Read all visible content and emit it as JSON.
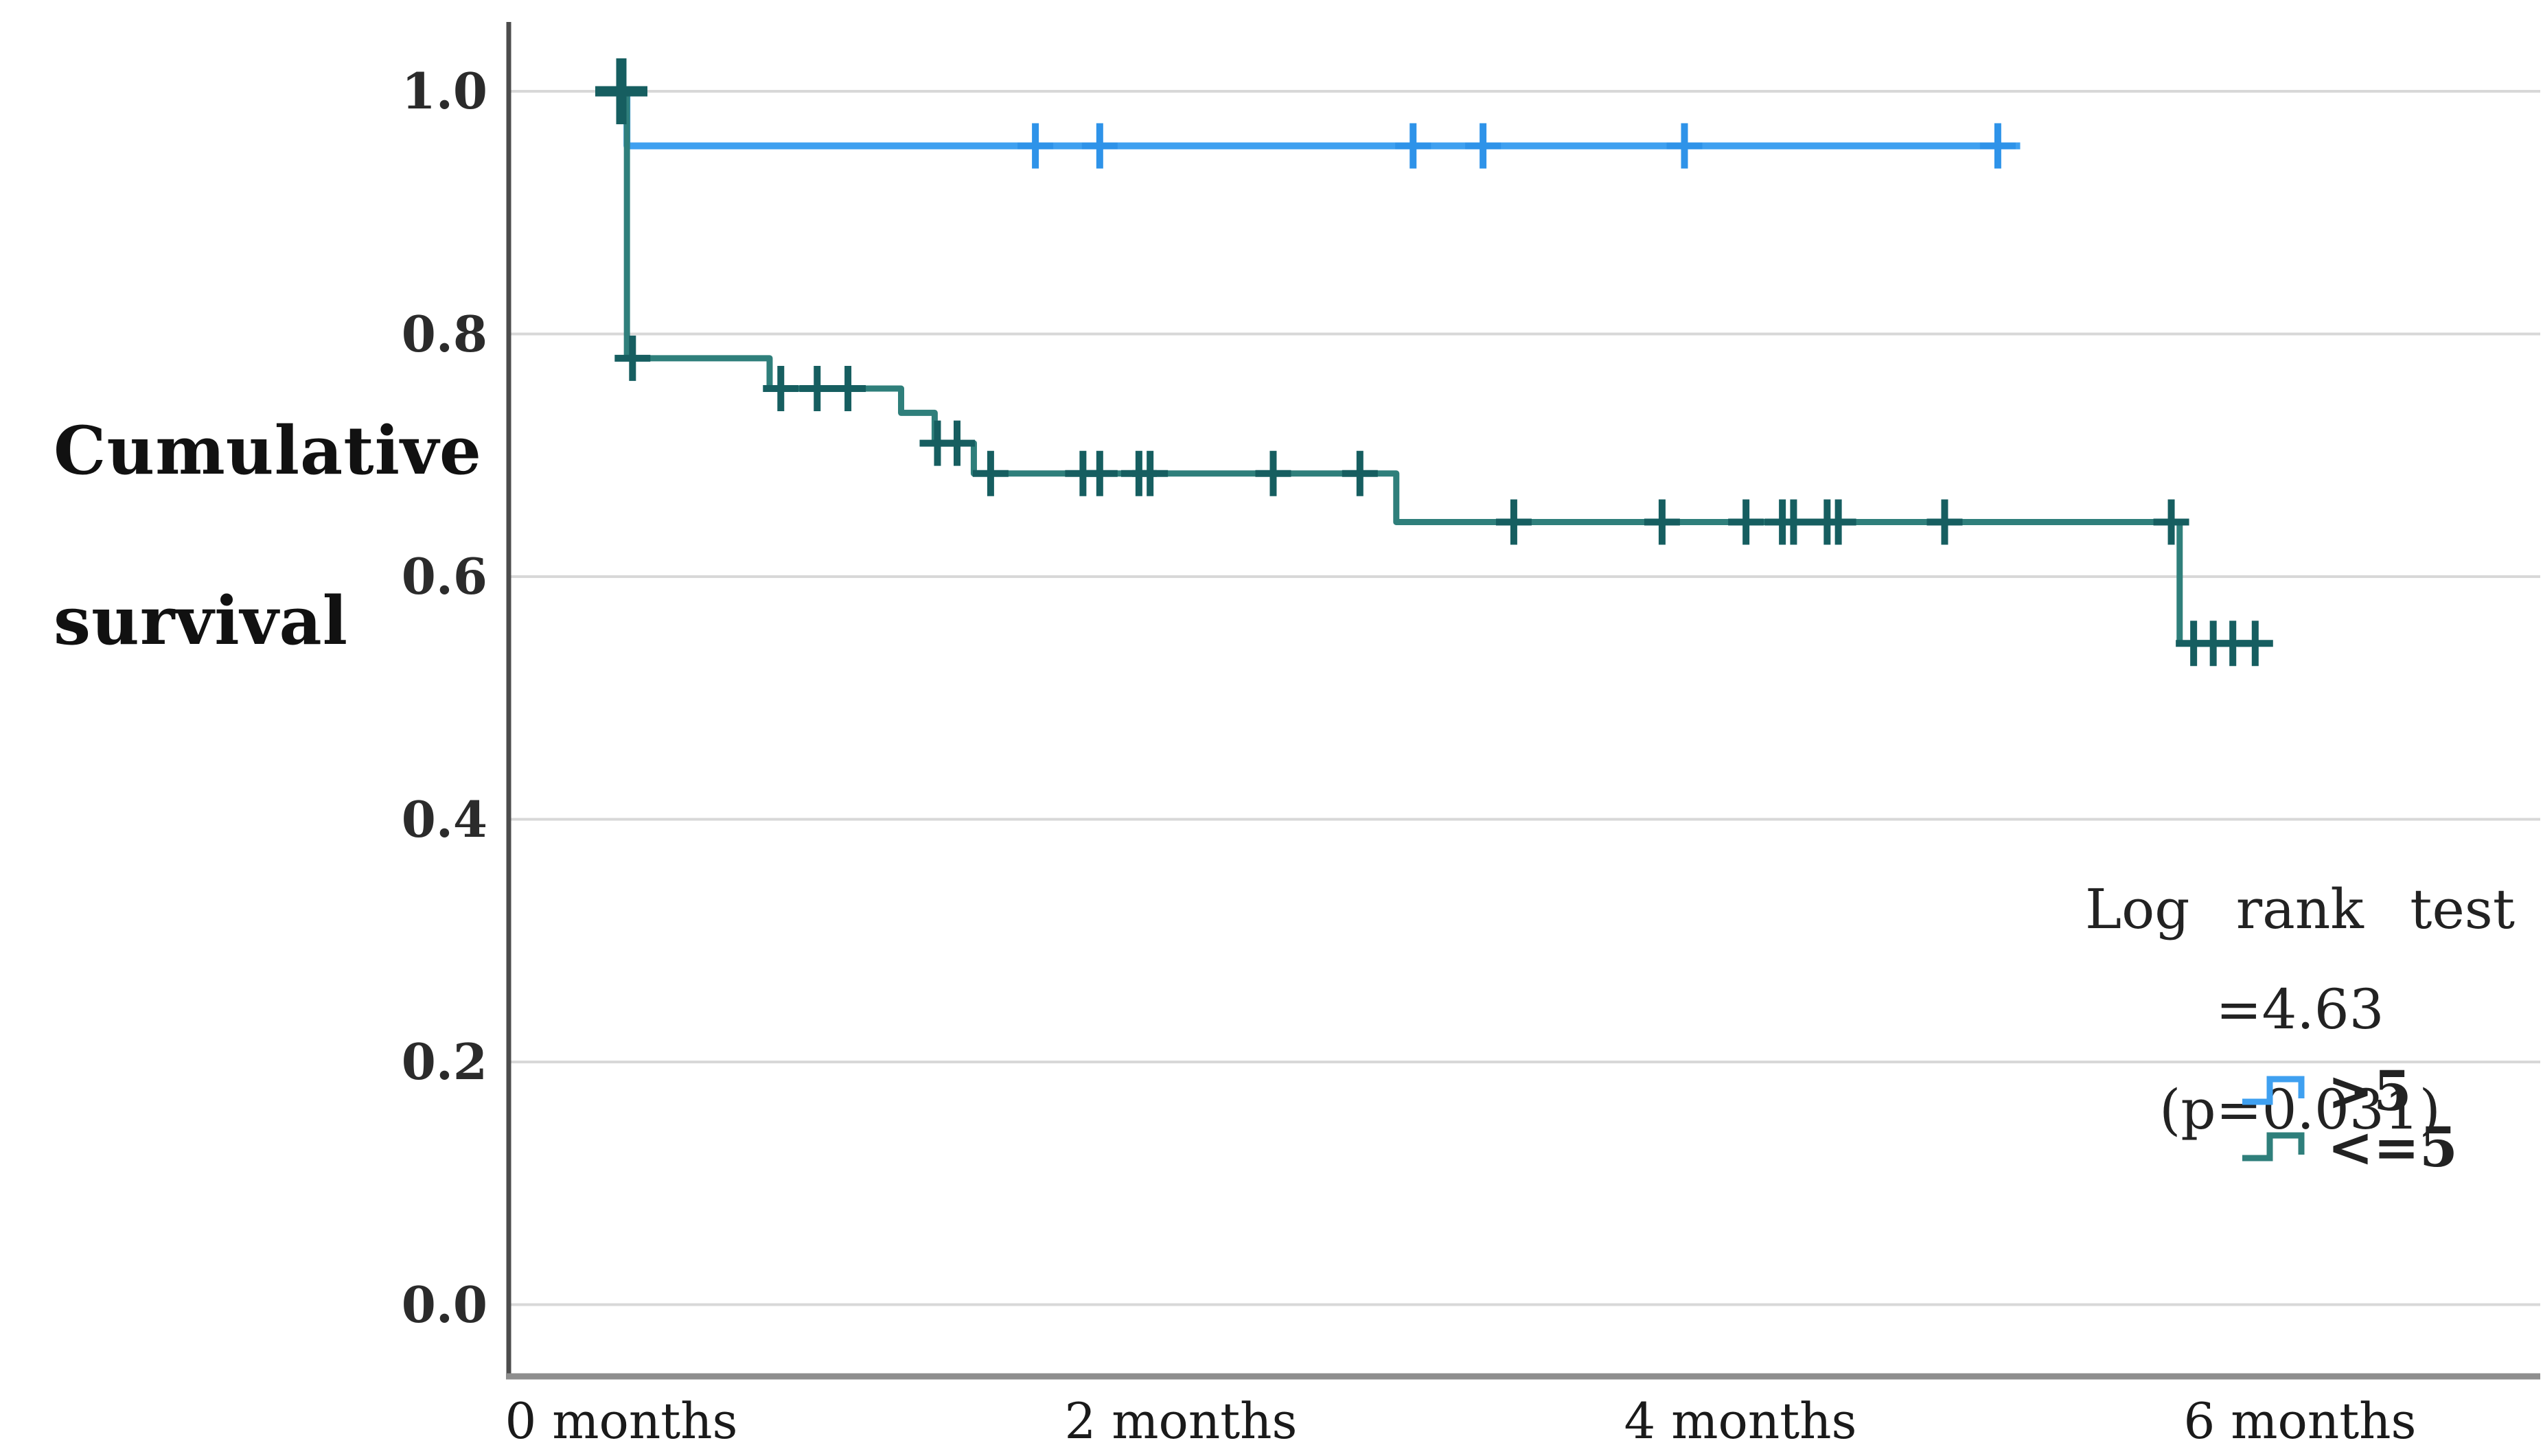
{
  "figure": {
    "ylabel_line1": "Cumulative",
    "ylabel_line2": "survival",
    "annotation_line1": "Log rank test",
    "annotation_line2": "=4.63 (p=0.031)"
  },
  "chart_data": {
    "type": "line",
    "subtype": "kaplan-meier-step-curves",
    "title": "",
    "xlabel": "",
    "ylabel": "Cumulative survival",
    "x_unit": "months",
    "xlim": [
      -0.4,
      6.85
    ],
    "ylim": [
      -0.055,
      1.06
    ],
    "grid": true,
    "gridline_values": [
      1.0,
      0.8,
      0.6,
      0.4,
      0.2,
      0.0
    ],
    "x_ticks": [
      {
        "value": 0,
        "label": "0 months"
      },
      {
        "value": 2,
        "label": "2 months"
      },
      {
        "value": 4,
        "label": "4 months"
      },
      {
        "value": 6,
        "label": "6 months"
      }
    ],
    "y_ticks": [
      {
        "value": 1.0,
        "label": "1.0"
      },
      {
        "value": 0.8,
        "label": "0.8"
      },
      {
        "value": 0.6,
        "label": "0.6"
      },
      {
        "value": 0.4,
        "label": "0.4"
      },
      {
        "value": 0.2,
        "label": "0.2"
      },
      {
        "value": 0.0,
        "label": "0.0"
      }
    ],
    "annotation": {
      "lines": [
        "Log rank test",
        "=4.63 (p=0.031)"
      ],
      "position": "right-middle"
    },
    "legend_position": "bottom-right",
    "series": [
      {
        "name": ">5",
        "color": "#3FA0F0",
        "censor_color": "#2E93E9",
        "steps": [
          [
            0,
            1.0
          ],
          [
            0.02,
            0.955
          ],
          [
            5.0,
            0.955
          ]
        ],
        "censors": [
          [
            1.48,
            0.955
          ],
          [
            1.71,
            0.955
          ],
          [
            2.83,
            0.955
          ],
          [
            3.08,
            0.955
          ],
          [
            3.8,
            0.955
          ],
          [
            4.92,
            0.955
          ]
        ]
      },
      {
        "name": "<=5",
        "color": "#2F7F7B",
        "censor_color": "#165E60",
        "steps": [
          [
            0,
            1.0
          ],
          [
            0.02,
            0.78
          ],
          [
            0.53,
            0.755
          ],
          [
            1.0,
            0.735
          ],
          [
            1.12,
            0.71
          ],
          [
            1.26,
            0.685
          ],
          [
            2.77,
            0.645
          ],
          [
            5.57,
            0.545
          ],
          [
            5.9,
            0.545
          ]
        ],
        "censors": [
          [
            0.0,
            1.0,
            "big"
          ],
          [
            0.04,
            0.78
          ],
          [
            0.57,
            0.755
          ],
          [
            0.7,
            0.755
          ],
          [
            0.81,
            0.755
          ],
          [
            1.13,
            0.71
          ],
          [
            1.2,
            0.71
          ],
          [
            1.32,
            0.685
          ],
          [
            1.65,
            0.685
          ],
          [
            1.71,
            0.685
          ],
          [
            1.85,
            0.685
          ],
          [
            1.89,
            0.685
          ],
          [
            2.33,
            0.685
          ],
          [
            2.64,
            0.685
          ],
          [
            3.19,
            0.645
          ],
          [
            3.72,
            0.645
          ],
          [
            4.02,
            0.645
          ],
          [
            4.15,
            0.645
          ],
          [
            4.19,
            0.645
          ],
          [
            4.31,
            0.645
          ],
          [
            4.35,
            0.645
          ],
          [
            4.73,
            0.645
          ],
          [
            5.54,
            0.645
          ],
          [
            5.62,
            0.545
          ],
          [
            5.69,
            0.545
          ],
          [
            5.76,
            0.545
          ],
          [
            5.84,
            0.545
          ]
        ]
      }
    ],
    "style_colors": {
      "gridline": "#D8D8D8",
      "axis_line": "#4D4D4D",
      "bottom_border": "#8E8E8E"
    }
  }
}
